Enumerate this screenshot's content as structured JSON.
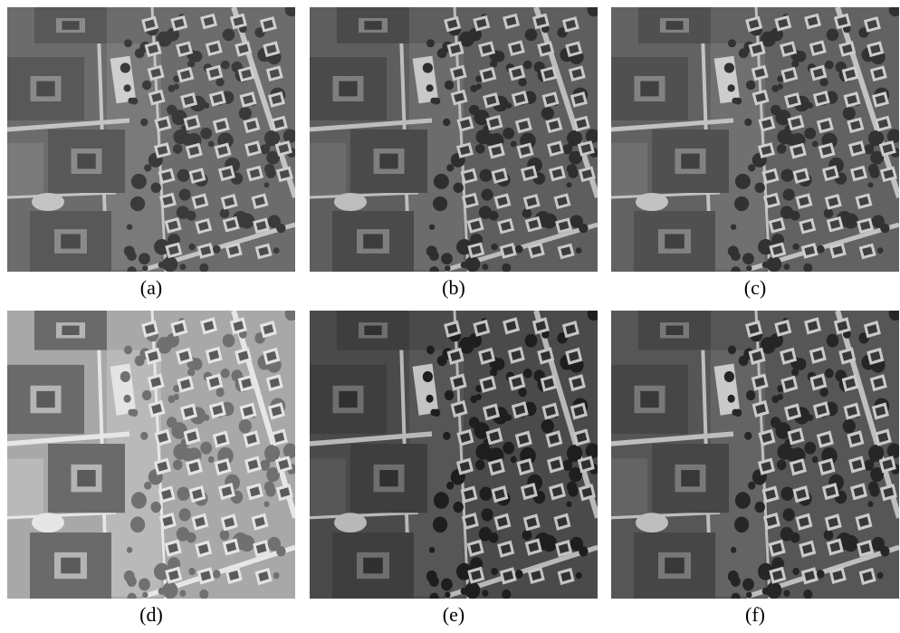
{
  "figure": {
    "panels": [
      {
        "id": "a",
        "caption": "(a)",
        "variant": "original",
        "tone": {
          "base": "#6c6c6c",
          "bld": "#585858",
          "roof": "#4a4a4a",
          "court": "#8a8a8a",
          "road": "#c4c4c4",
          "tree": "#3a3a3a",
          "house": "#cfcfcf",
          "lawn": "#7a7a7a"
        }
      },
      {
        "id": "b",
        "caption": "(b)",
        "variant": "enhanced",
        "tone": {
          "base": "#5e5e5e",
          "bld": "#4a4a4a",
          "roof": "#3c3c3c",
          "court": "#7e7e7e",
          "road": "#bdbdbd",
          "tree": "#2e2e2e",
          "house": "#c8c8c8",
          "lawn": "#6c6c6c"
        }
      },
      {
        "id": "c",
        "caption": "(c)",
        "variant": "enhanced",
        "tone": {
          "base": "#626262",
          "bld": "#505050",
          "roof": "#404040",
          "court": "#828282",
          "road": "#c2c2c2",
          "tree": "#323232",
          "house": "#cdcdcd",
          "lawn": "#707070"
        }
      },
      {
        "id": "d",
        "caption": "(d)",
        "variant": "bright",
        "tone": {
          "base": "#a8a8a8",
          "bld": "#6a6a6a",
          "roof": "#5a5a5a",
          "court": "#b4b4b4",
          "road": "#e6e6e6",
          "tree": "#707070",
          "house": "#e4e4e4",
          "lawn": "#b9b9b9"
        }
      },
      {
        "id": "e",
        "caption": "(e)",
        "variant": "dark",
        "tone": {
          "base": "#4a4a4a",
          "bld": "#3e3e3e",
          "roof": "#303030",
          "court": "#6e6e6e",
          "road": "#b8b8b8",
          "tree": "#1e1e1e",
          "house": "#c4c4c4",
          "lawn": "#565656"
        }
      },
      {
        "id": "f",
        "caption": "(f)",
        "variant": "enhanced",
        "tone": {
          "base": "#565656",
          "bld": "#464646",
          "roof": "#383838",
          "court": "#787878",
          "road": "#bebebe",
          "tree": "#262626",
          "house": "#cacaca",
          "lawn": "#646464"
        }
      }
    ]
  }
}
